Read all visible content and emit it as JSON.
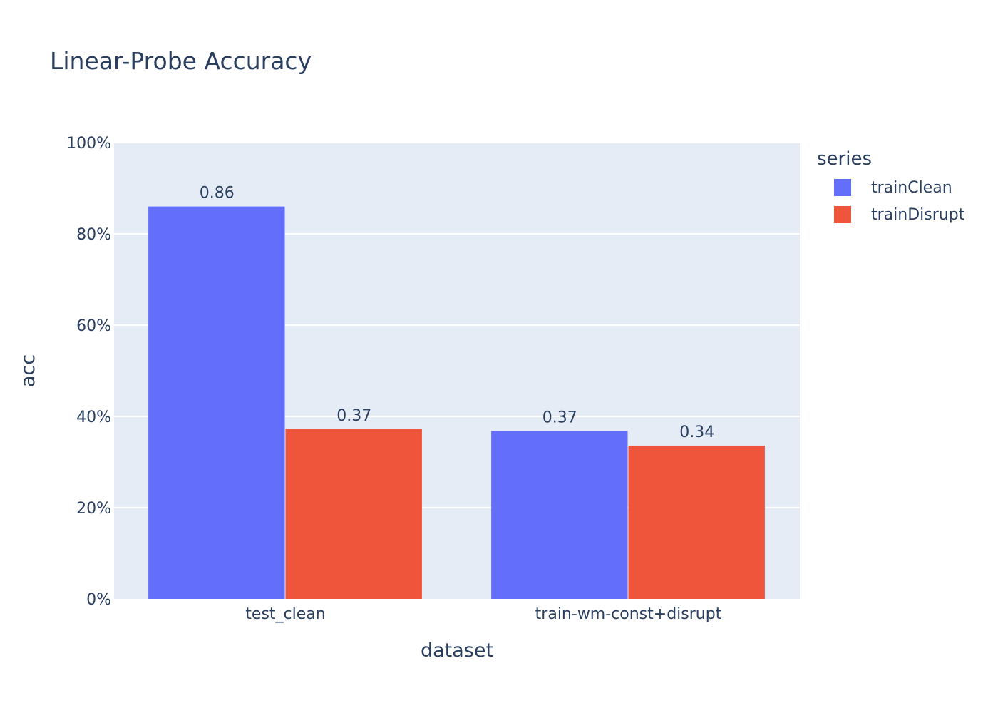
{
  "chart_data": {
    "type": "bar",
    "title": "Linear-Probe Accuracy",
    "xlabel": "dataset",
    "ylabel": "acc",
    "categories": [
      "test_clean",
      "train-wm-const+disrupt"
    ],
    "ylim": [
      0,
      1
    ],
    "yticks": [
      0,
      0.2,
      0.4,
      0.6,
      0.8,
      1.0
    ],
    "ytick_labels": [
      "0%",
      "20%",
      "40%",
      "60%",
      "80%",
      "100%"
    ],
    "grid": true,
    "legend": {
      "title": "series",
      "placement": "right"
    },
    "series": [
      {
        "name": "trainClean",
        "color": "#636efa",
        "values": [
          0.86,
          0.368
        ],
        "labels": [
          "0.86",
          "0.37"
        ]
      },
      {
        "name": "trainDisrupt",
        "color": "#ef553b",
        "values": [
          0.372,
          0.336
        ],
        "labels": [
          "0.37",
          "0.34"
        ]
      }
    ],
    "plot_bg": "#e5ecf6"
  }
}
